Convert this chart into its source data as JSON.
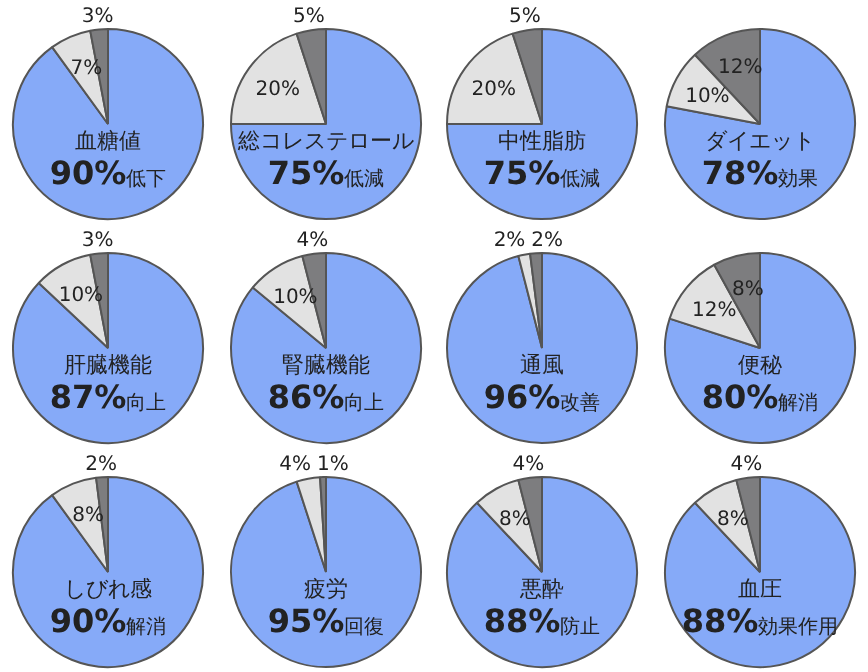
{
  "chart_data": [
    {
      "type": "pie",
      "title": "血糖値",
      "categories": [
        null,
        null,
        null
      ],
      "values": [
        90,
        7,
        3
      ],
      "colors": [
        "#86aaf8",
        "#e2e2e2",
        "#7d7d7f"
      ],
      "value_labels": [
        "90%低下",
        "7%",
        "3%"
      ]
    },
    {
      "type": "pie",
      "title": "総コレステロール",
      "categories": [
        null,
        null,
        null
      ],
      "values": [
        75,
        20,
        5
      ],
      "colors": [
        "#86aaf8",
        "#e2e2e2",
        "#7d7d7f"
      ],
      "value_labels": [
        "75%低減",
        "20%",
        "5%"
      ]
    },
    {
      "type": "pie",
      "title": "中性脂肪",
      "categories": [
        null,
        null,
        null
      ],
      "values": [
        75,
        20,
        5
      ],
      "colors": [
        "#86aaf8",
        "#e2e2e2",
        "#7d7d7f"
      ],
      "value_labels": [
        "75%低減",
        "20%",
        "5%"
      ]
    },
    {
      "type": "pie",
      "title": "ダイエット",
      "categories": [
        null,
        null,
        null
      ],
      "values": [
        78,
        10,
        12
      ],
      "colors": [
        "#86aaf8",
        "#e2e2e2",
        "#7d7d7f"
      ],
      "value_labels": [
        "78%効果",
        "10%",
        "12%"
      ]
    },
    {
      "type": "pie",
      "title": "肝臓機能",
      "categories": [
        null,
        null,
        null
      ],
      "values": [
        87,
        10,
        3
      ],
      "colors": [
        "#86aaf8",
        "#e2e2e2",
        "#7d7d7f"
      ],
      "value_labels": [
        "87%向上",
        "10%",
        "3%"
      ]
    },
    {
      "type": "pie",
      "title": "腎臓機能",
      "categories": [
        null,
        null,
        null
      ],
      "values": [
        86,
        10,
        4
      ],
      "colors": [
        "#86aaf8",
        "#e2e2e2",
        "#7d7d7f"
      ],
      "value_labels": [
        "86%向上",
        "10%",
        "4%"
      ]
    },
    {
      "type": "pie",
      "title": "通風",
      "categories": [
        null,
        null,
        null
      ],
      "values": [
        96,
        2,
        2
      ],
      "colors": [
        "#86aaf8",
        "#e2e2e2",
        "#7d7d7f"
      ],
      "value_labels": [
        "96%改善",
        "2%",
        "2%"
      ]
    },
    {
      "type": "pie",
      "title": "便秘",
      "categories": [
        null,
        null,
        null
      ],
      "values": [
        80,
        12,
        8
      ],
      "colors": [
        "#86aaf8",
        "#e2e2e2",
        "#7d7d7f"
      ],
      "value_labels": [
        "80%解消",
        "12%",
        "8%"
      ]
    },
    {
      "type": "pie",
      "title": "しびれ感",
      "categories": [
        null,
        null,
        null
      ],
      "values": [
        90,
        8,
        2
      ],
      "colors": [
        "#86aaf8",
        "#e2e2e2",
        "#7d7d7f"
      ],
      "value_labels": [
        "90%解消",
        "8%",
        "2%"
      ]
    },
    {
      "type": "pie",
      "title": "疲労",
      "categories": [
        null,
        null,
        null
      ],
      "values": [
        95,
        4,
        1
      ],
      "colors": [
        "#86aaf8",
        "#e2e2e2",
        "#7d7d7f"
      ],
      "value_labels": [
        "95%回復",
        "4%",
        "1%"
      ]
    },
    {
      "type": "pie",
      "title": "悪酔",
      "categories": [
        null,
        null,
        null
      ],
      "values": [
        88,
        8,
        4
      ],
      "colors": [
        "#86aaf8",
        "#e2e2e2",
        "#7d7d7f"
      ],
      "value_labels": [
        "88%防止",
        "8%",
        "4%"
      ]
    },
    {
      "type": "pie",
      "title": "血圧",
      "categories": [
        null,
        null,
        null
      ],
      "values": [
        88,
        8,
        4
      ],
      "colors": [
        "#86aaf8",
        "#e2e2e2",
        "#7d7d7f"
      ],
      "value_labels": [
        "88%効果作用",
        "8%",
        "4%"
      ]
    }
  ]
}
